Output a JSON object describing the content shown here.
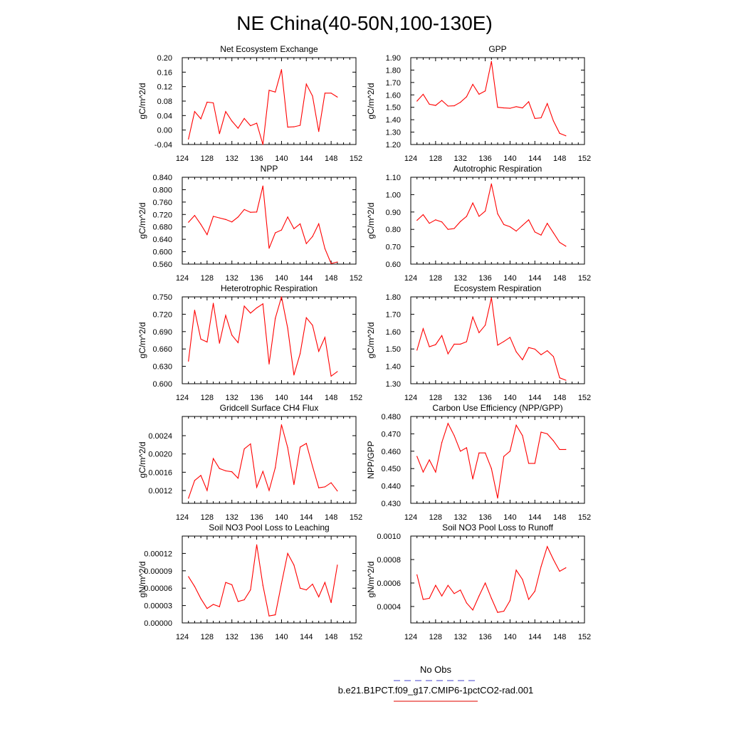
{
  "title": "NE China(40-50N,100-130E)",
  "legend": {
    "placement": "bottom-center",
    "entries": [
      {
        "label": "No Obs",
        "color": "#6b6bd6",
        "dash": true
      },
      {
        "label": "b.e21.B1PCT.f09_g17.CMIP6-1pctCO2-rad.001",
        "color": "#e8332e",
        "dash": false
      }
    ]
  },
  "colors": {
    "series": "#ff0000"
  },
  "chart_data": [
    {
      "type": "line",
      "title": "Net Ecosystem Exchange",
      "xlabel": "",
      "ylabel": "gC/m^2/d",
      "xlim": [
        124,
        152
      ],
      "ylim": [
        -0.04,
        0.2
      ],
      "xticks": [
        "124",
        "128",
        "132",
        "136",
        "140",
        "144",
        "148",
        "152"
      ],
      "yticks": [
        "-0.04",
        "0.00",
        "0.04",
        "0.08",
        "0.12",
        "0.16",
        "0.20"
      ],
      "x": [
        125,
        126,
        127,
        128,
        129,
        130,
        131,
        132,
        133,
        134,
        135,
        136,
        137,
        138,
        139,
        140,
        141,
        142,
        143,
        144,
        145,
        146,
        147,
        148,
        149
      ],
      "series": [
        {
          "values": [
            -0.025,
            0.051,
            0.031,
            0.077,
            0.075,
            -0.01,
            0.051,
            0.025,
            0.005,
            0.032,
            0.012,
            0.019,
            -0.04,
            0.11,
            0.105,
            0.167,
            0.008,
            0.009,
            0.013,
            0.127,
            0.094,
            -0.004,
            0.102,
            0.102,
            0.091
          ]
        }
      ]
    },
    {
      "type": "line",
      "title": "GPP",
      "xlabel": "",
      "ylabel": "gC/m^2/d",
      "xlim": [
        124,
        152
      ],
      "ylim": [
        1.2,
        1.9
      ],
      "xticks": [
        "124",
        "128",
        "132",
        "136",
        "140",
        "144",
        "148",
        "152"
      ],
      "yticks": [
        "1.20",
        "1.30",
        "1.40",
        "1.50",
        "1.60",
        "1.70",
        "1.80",
        "1.90"
      ],
      "x": [
        125,
        126,
        127,
        128,
        129,
        130,
        131,
        132,
        133,
        134,
        135,
        136,
        137,
        138,
        139,
        140,
        141,
        142,
        143,
        144,
        145,
        146,
        147,
        148,
        149
      ],
      "series": [
        {
          "values": [
            1.55,
            1.605,
            1.525,
            1.515,
            1.555,
            1.51,
            1.512,
            1.54,
            1.585,
            1.685,
            1.605,
            1.632,
            1.87,
            1.5,
            1.495,
            1.492,
            1.505,
            1.495,
            1.545,
            1.41,
            1.415,
            1.53,
            1.39,
            1.29,
            1.27
          ]
        }
      ]
    },
    {
      "type": "line",
      "title": "NPP",
      "xlabel": "",
      "ylabel": "gC/m^2/d",
      "xlim": [
        124,
        152
      ],
      "ylim": [
        0.56,
        0.84
      ],
      "xticks": [
        "124",
        "128",
        "132",
        "136",
        "140",
        "144",
        "148",
        "152"
      ],
      "yticks": [
        "0.560",
        "0.600",
        "0.640",
        "0.680",
        "0.720",
        "0.760",
        "0.800",
        "0.840"
      ],
      "x": [
        125,
        126,
        127,
        128,
        129,
        130,
        131,
        132,
        133,
        134,
        135,
        136,
        137,
        138,
        139,
        140,
        141,
        142,
        143,
        144,
        145,
        146,
        147,
        148,
        149
      ],
      "series": [
        {
          "values": [
            0.695,
            0.717,
            0.688,
            0.655,
            0.714,
            0.709,
            0.704,
            0.696,
            0.712,
            0.736,
            0.727,
            0.728,
            0.812,
            0.611,
            0.661,
            0.67,
            0.712,
            0.674,
            0.69,
            0.626,
            0.649,
            0.69,
            0.61,
            0.562,
            0.567
          ]
        }
      ]
    },
    {
      "type": "line",
      "title": "Autotrophic Respiration",
      "xlabel": "",
      "ylabel": "gC/m^2/d",
      "xlim": [
        124,
        152
      ],
      "ylim": [
        0.6,
        1.1
      ],
      "xticks": [
        "124",
        "128",
        "132",
        "136",
        "140",
        "144",
        "148",
        "152"
      ],
      "yticks": [
        "0.60",
        "0.70",
        "0.80",
        "0.90",
        "1.00",
        "1.10"
      ],
      "x": [
        125,
        126,
        127,
        128,
        129,
        130,
        131,
        132,
        133,
        134,
        135,
        136,
        137,
        138,
        139,
        140,
        141,
        142,
        143,
        144,
        145,
        146,
        147,
        148,
        149
      ],
      "series": [
        {
          "values": [
            0.852,
            0.885,
            0.835,
            0.855,
            0.843,
            0.8,
            0.805,
            0.845,
            0.875,
            0.952,
            0.875,
            0.905,
            1.062,
            0.89,
            0.828,
            0.815,
            0.79,
            0.823,
            0.855,
            0.785,
            0.767,
            0.835,
            0.78,
            0.725,
            0.703
          ]
        }
      ]
    },
    {
      "type": "line",
      "title": "Heterotrophic Respiration",
      "xlabel": "",
      "ylabel": "gC/m^2/d",
      "xlim": [
        124,
        152
      ],
      "ylim": [
        0.6,
        0.75
      ],
      "xticks": [
        "124",
        "128",
        "132",
        "136",
        "140",
        "144",
        "148",
        "152"
      ],
      "yticks": [
        "0.600",
        "0.630",
        "0.660",
        "0.690",
        "0.720",
        "0.750"
      ],
      "x": [
        125,
        126,
        127,
        128,
        129,
        130,
        131,
        132,
        133,
        134,
        135,
        136,
        137,
        138,
        139,
        140,
        141,
        142,
        143,
        144,
        145,
        146,
        147,
        148,
        149
      ],
      "series": [
        {
          "values": [
            0.639,
            0.727,
            0.677,
            0.672,
            0.739,
            0.67,
            0.718,
            0.684,
            0.671,
            0.734,
            0.722,
            0.731,
            0.738,
            0.634,
            0.713,
            0.75,
            0.696,
            0.615,
            0.652,
            0.714,
            0.701,
            0.656,
            0.68,
            0.613,
            0.621
          ]
        }
      ]
    },
    {
      "type": "line",
      "title": "Ecosystem Respiration",
      "xlabel": "",
      "ylabel": "gC/m^2/d",
      "xlim": [
        124,
        152
      ],
      "ylim": [
        1.3,
        1.8
      ],
      "xticks": [
        "124",
        "128",
        "132",
        "136",
        "140",
        "144",
        "148",
        "152"
      ],
      "yticks": [
        "1.30",
        "1.40",
        "1.50",
        "1.60",
        "1.70",
        "1.80"
      ],
      "x": [
        125,
        126,
        127,
        128,
        129,
        130,
        131,
        132,
        133,
        134,
        135,
        136,
        137,
        138,
        139,
        140,
        141,
        142,
        143,
        144,
        145,
        146,
        147,
        148,
        149
      ],
      "series": [
        {
          "values": [
            1.493,
            1.617,
            1.513,
            1.525,
            1.577,
            1.472,
            1.528,
            1.528,
            1.542,
            1.684,
            1.594,
            1.637,
            1.795,
            1.522,
            1.543,
            1.567,
            1.484,
            1.438,
            1.508,
            1.499,
            1.467,
            1.49,
            1.456,
            1.334,
            1.32
          ]
        }
      ]
    },
    {
      "type": "line",
      "title": "Gridcell Surface CH4 Flux",
      "xlabel": "",
      "ylabel": "gC/m^2/d",
      "xlim": [
        124,
        152
      ],
      "ylim": [
        0.00092,
        0.00282
      ],
      "xticks": [
        "124",
        "128",
        "132",
        "136",
        "140",
        "144",
        "148",
        "152"
      ],
      "yticks": [
        "0.0012",
        "0.0016",
        "0.0020",
        "0.0024"
      ],
      "ytick_values": [
        0.0012,
        0.0016,
        0.002,
        0.0024
      ],
      "x": [
        125,
        126,
        127,
        128,
        129,
        130,
        131,
        132,
        133,
        134,
        135,
        136,
        137,
        138,
        139,
        140,
        141,
        142,
        143,
        144,
        145,
        146,
        147,
        148,
        149
      ],
      "series": [
        {
          "values": [
            0.00103,
            0.00142,
            0.00153,
            0.0012,
            0.0019,
            0.00168,
            0.00163,
            0.00161,
            0.00147,
            0.00211,
            0.00222,
            0.00127,
            0.00162,
            0.0012,
            0.0017,
            0.00264,
            0.00214,
            0.00133,
            0.00215,
            0.00223,
            0.00173,
            0.00126,
            0.00128,
            0.00137,
            0.00119
          ]
        }
      ]
    },
    {
      "type": "line",
      "title": "Carbon Use Efficiency (NPP/GPP)",
      "xlabel": "",
      "ylabel": "NPP/GPP",
      "xlim": [
        124,
        152
      ],
      "ylim": [
        0.43,
        0.48
      ],
      "xticks": [
        "124",
        "128",
        "132",
        "136",
        "140",
        "144",
        "148",
        "152"
      ],
      "yticks": [
        "0.430",
        "0.440",
        "0.450",
        "0.460",
        "0.470",
        "0.480"
      ],
      "x": [
        125,
        126,
        127,
        128,
        129,
        130,
        131,
        132,
        133,
        134,
        135,
        136,
        137,
        138,
        139,
        140,
        141,
        142,
        143,
        144,
        145,
        146,
        147,
        148,
        149
      ],
      "series": [
        {
          "values": [
            0.457,
            0.448,
            0.455,
            0.448,
            0.465,
            0.476,
            0.469,
            0.46,
            0.462,
            0.444,
            0.459,
            0.459,
            0.45,
            0.433,
            0.457,
            0.46,
            0.475,
            0.469,
            0.453,
            0.453,
            0.471,
            0.47,
            0.466,
            0.461,
            0.461
          ]
        }
      ]
    },
    {
      "type": "line",
      "title": "Soil NO3 Pool Loss to Leaching",
      "xlabel": "",
      "ylabel": "gN/m^2/d",
      "xlim": [
        124,
        152
      ],
      "ylim": [
        0,
        0.00015
      ],
      "xticks": [
        "124",
        "128",
        "132",
        "136",
        "140",
        "144",
        "148",
        "152"
      ],
      "yticks": [
        "0.00000",
        "0.00003",
        "0.00006",
        "0.00009",
        "0.00012"
      ],
      "ytick_values": [
        0,
        3e-05,
        6e-05,
        9e-05,
        0.00012
      ],
      "x": [
        125,
        126,
        127,
        128,
        129,
        130,
        131,
        132,
        133,
        134,
        135,
        136,
        137,
        138,
        139,
        140,
        141,
        142,
        143,
        144,
        145,
        146,
        147,
        148,
        149
      ],
      "series": [
        {
          "values": [
            8e-05,
            6.3e-05,
            4.2e-05,
            2.5e-05,
            3.2e-05,
            2.8e-05,
            7e-05,
            6.6e-05,
            3.7e-05,
            4e-05,
            5.7e-05,
            0.000135,
            6.5e-05,
            1.2e-05,
            1.4e-05,
            6.8e-05,
            0.00012,
            0.0001,
            6e-05,
            5.7e-05,
            6.7e-05,
            4.5e-05,
            7e-05,
            3.5e-05,
            0.0001
          ]
        }
      ]
    },
    {
      "type": "line",
      "title": "Soil NO3 Pool Loss to Runoff",
      "xlabel": "",
      "ylabel": "gN/m^2/d",
      "xlim": [
        124,
        152
      ],
      "ylim": [
        0.00026,
        0.001
      ],
      "xticks": [
        "124",
        "128",
        "132",
        "136",
        "140",
        "144",
        "148",
        "152"
      ],
      "yticks": [
        "0.0004",
        "0.0006",
        "0.0008",
        "0.0010"
      ],
      "ytick_values": [
        0.0004,
        0.0006,
        0.0008,
        0.001
      ],
      "x": [
        125,
        126,
        127,
        128,
        129,
        130,
        131,
        132,
        133,
        134,
        135,
        136,
        137,
        138,
        139,
        140,
        141,
        142,
        143,
        144,
        145,
        146,
        147,
        148,
        149
      ],
      "series": [
        {
          "values": [
            0.00067,
            0.00046,
            0.00047,
            0.00058,
            0.00049,
            0.00058,
            0.00051,
            0.00054,
            0.00043,
            0.00037,
            0.00049,
            0.0006,
            0.00047,
            0.00035,
            0.00036,
            0.00045,
            0.00071,
            0.00063,
            0.00046,
            0.00053,
            0.00074,
            0.00091,
            0.0008,
            0.0007,
            0.00073
          ]
        }
      ]
    }
  ]
}
